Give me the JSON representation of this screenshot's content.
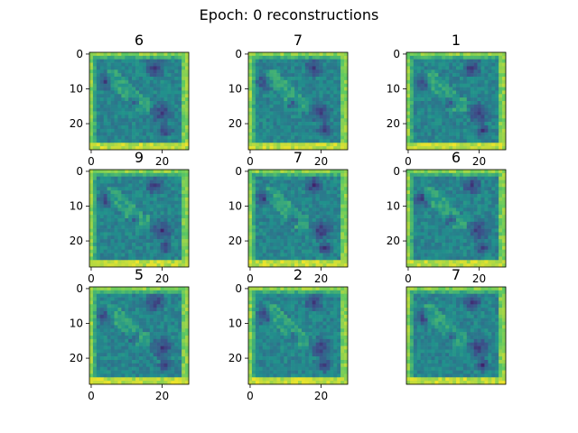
{
  "figure": {
    "title": "Epoch: 0 reconstructions"
  },
  "colors": {
    "axis": "#000000",
    "background": "#ffffff",
    "colormap": "viridis",
    "dark": "#440154",
    "mid": "#21918c",
    "bright": "#fde725"
  },
  "chart_data": {
    "type": "heatmap",
    "grid": "3x3",
    "image_size": [
      28,
      28
    ],
    "ylim": [
      27.5,
      -0.5
    ],
    "xlim": [
      -0.5,
      27.5
    ],
    "x_ticks": [
      0,
      20
    ],
    "y_ticks": [
      0,
      10,
      20
    ],
    "panels": [
      {
        "title": "6",
        "x_tick_labels": [
          "0",
          "20"
        ],
        "y_tick_labels": [
          "0",
          "10",
          "20"
        ]
      },
      {
        "title": "7",
        "x_tick_labels": [
          "0",
          "20"
        ],
        "y_tick_labels": [
          "0",
          "10",
          "20"
        ]
      },
      {
        "title": "1",
        "x_tick_labels": [
          "0",
          "20"
        ],
        "y_tick_labels": [
          "0",
          "10",
          "20"
        ]
      },
      {
        "title": "9",
        "x_tick_labels": [
          "0",
          "20"
        ],
        "y_tick_labels": [
          "0",
          "10",
          "20"
        ]
      },
      {
        "title": "7",
        "x_tick_labels": [
          "0",
          "20"
        ],
        "y_tick_labels": [
          "0",
          "10",
          "20"
        ]
      },
      {
        "title": "6",
        "x_tick_labels": [
          "0",
          "20"
        ],
        "y_tick_labels": [
          "0",
          "10",
          "20"
        ]
      },
      {
        "title": "5",
        "x_tick_labels": [
          "0",
          "20"
        ],
        "y_tick_labels": [
          "0",
          "10",
          "20"
        ]
      },
      {
        "title": "2",
        "x_tick_labels": [
          "0",
          "20"
        ],
        "y_tick_labels": [
          "0",
          "10",
          "20"
        ]
      },
      {
        "title": "7",
        "x_tick_labels": [],
        "y_tick_labels": []
      }
    ]
  }
}
